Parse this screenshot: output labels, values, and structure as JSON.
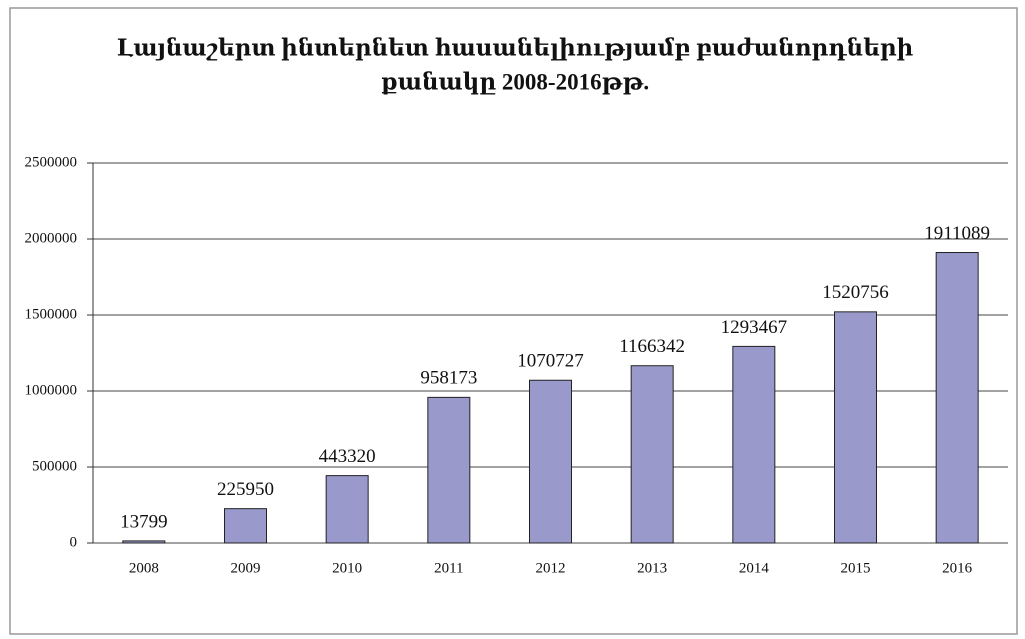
{
  "chart_data": {
    "type": "bar",
    "title": [
      "Լայնաշերտ ինտերնետ հասանելիությամբ բաժանորդների",
      "քանակը 2008-2016թթ."
    ],
    "categories": [
      "2008",
      "2009",
      "2010",
      "2011",
      "2012",
      "2013",
      "2014",
      "2015",
      "2016"
    ],
    "values": [
      13799,
      225950,
      443320,
      958173,
      1070727,
      1166342,
      1293467,
      1520756,
      1911089
    ],
    "color": "#9999cc",
    "ylim": [
      0,
      2500000
    ],
    "yticks": [
      0,
      500000,
      1000000,
      1500000,
      2000000,
      2500000
    ],
    "grid": true,
    "data_labels": true
  }
}
